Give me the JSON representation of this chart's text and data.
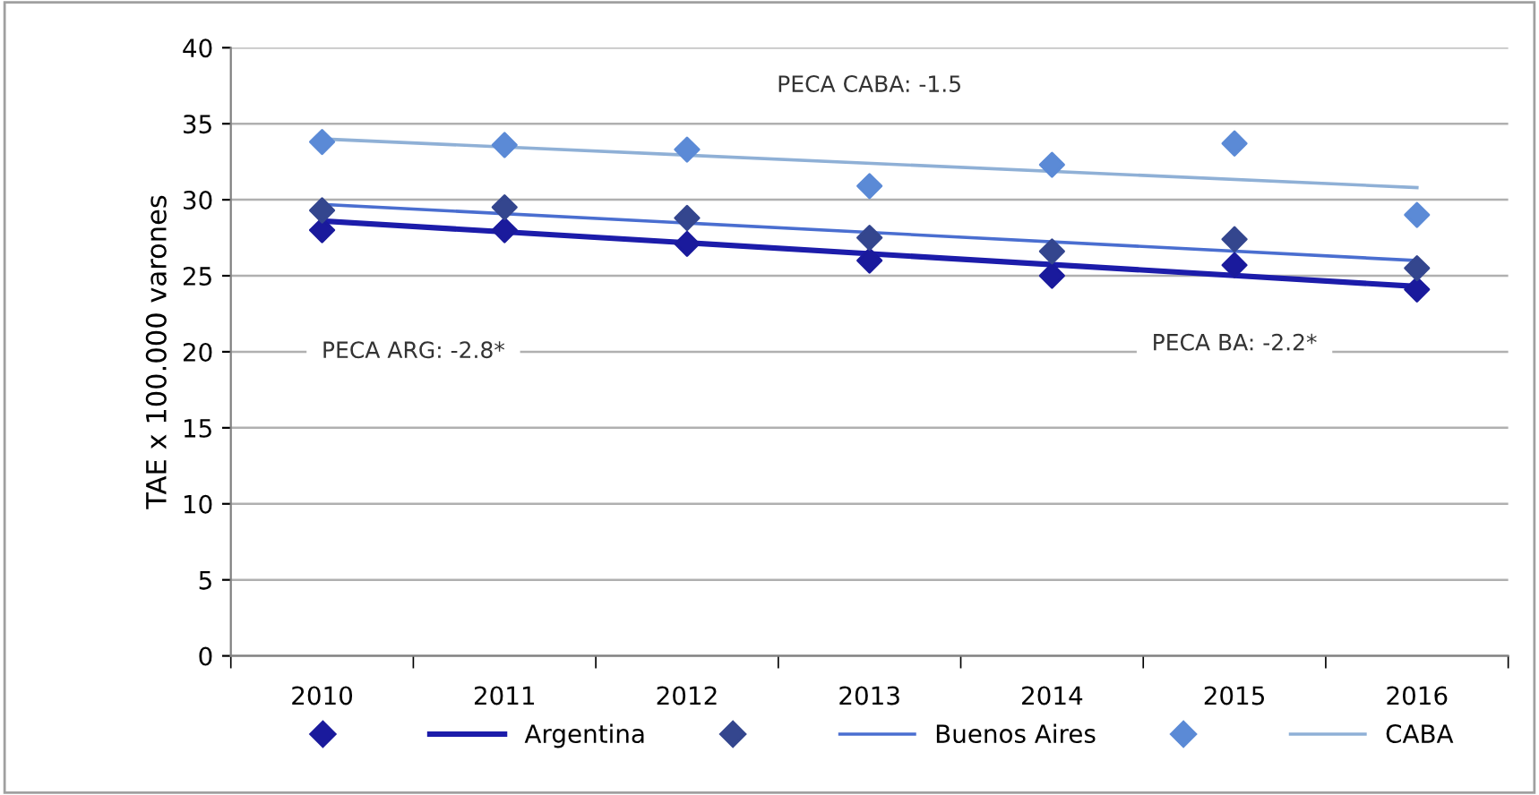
{
  "chart_data": {
    "type": "scatter",
    "ylabel": "TAE x 100.000 varones",
    "categories": [
      "2010",
      "2011",
      "2012",
      "2013",
      "2014",
      "2015",
      "2016"
    ],
    "series": [
      {
        "color": "#1a1a9c",
        "marker": "diamond",
        "values": [
          28.0,
          28.0,
          27.1,
          26.0,
          25.0,
          25.7,
          24.1
        ]
      },
      {
        "type": "line",
        "name": "Argentina",
        "color": "#1c1caa",
        "marker": "none",
        "values": [
          28.6,
          null,
          null,
          null,
          null,
          null,
          24.3
        ]
      },
      {
        "color": "#34468e",
        "marker": "diamond",
        "values": [
          29.3,
          29.5,
          28.8,
          27.5,
          26.6,
          27.4,
          25.5
        ]
      },
      {
        "type": "line",
        "name": "Buenos Aires",
        "color": "#4a6ed0",
        "marker": "none",
        "values": [
          29.7,
          null,
          null,
          null,
          null,
          null,
          26.0
        ]
      },
      {
        "color": "#5b8ad6",
        "marker": "diamond",
        "values": [
          33.8,
          33.6,
          33.3,
          30.9,
          32.3,
          33.7,
          29.0
        ]
      },
      {
        "type": "line",
        "name": "CABA",
        "color": "#8fb0d6",
        "marker": "none",
        "values": [
          34.0,
          null,
          null,
          null,
          null,
          null,
          30.8
        ]
      }
    ],
    "ylim": [
      0,
      40
    ],
    "yticks": [
      0,
      5,
      10,
      15,
      20,
      25,
      30,
      35,
      40
    ],
    "grid": "y",
    "legend": "bottom",
    "annotations": [
      "PECA CABA: -1.5",
      "PECA ARG: -2.8*",
      "PECA BA: -2.2*"
    ]
  }
}
